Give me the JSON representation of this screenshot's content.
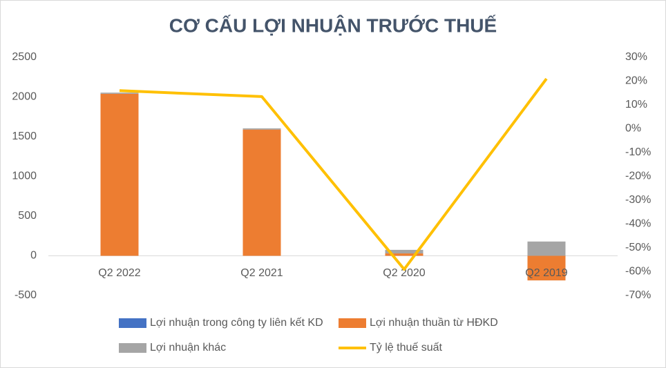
{
  "chart_data": {
    "type": "bar",
    "title": "CƠ CẤU LỢI NHUẬN TRƯỚC THUẾ",
    "categories": [
      "Q2 2022",
      "Q2 2021",
      "Q2 2020",
      "Q2 2019"
    ],
    "series": [
      {
        "name": "Lợi nhuận trong công ty liên kết KD",
        "color": "#4472c4",
        "values": [
          0,
          0,
          0,
          0
        ]
      },
      {
        "name": "Lợi nhuận thuần từ HĐKD",
        "color": "#ed7d31",
        "values": [
          2040,
          1590,
          30,
          -310
        ]
      },
      {
        "name": "Lợi nhuận khác",
        "color": "#a5a5a5",
        "values": [
          15,
          15,
          45,
          180
        ]
      },
      {
        "name": "Tỷ lệ thuế suất",
        "color": "#ffc000",
        "type": "line",
        "axis": "y2",
        "values": [
          16,
          13.5,
          -59,
          21
        ]
      }
    ],
    "ylim": [
      -500,
      2500
    ],
    "yticks": [
      -500,
      0,
      500,
      1000,
      1500,
      2000,
      2500
    ],
    "y2lim": [
      -70,
      30
    ],
    "y2ticks": [
      {
        "value": -70,
        "label": "-70%"
      },
      {
        "value": -60,
        "label": "-60%"
      },
      {
        "value": -50,
        "label": "-50%"
      },
      {
        "value": -40,
        "label": "-40%"
      },
      {
        "value": -30,
        "label": "-30%"
      },
      {
        "value": -20,
        "label": "-20%"
      },
      {
        "value": -10,
        "label": "-10%"
      },
      {
        "value": 0,
        "label": "0%"
      },
      {
        "value": 10,
        "label": "10%"
      },
      {
        "value": 20,
        "label": "20%"
      },
      {
        "value": 30,
        "label": "30%"
      }
    ],
    "grid": false
  }
}
